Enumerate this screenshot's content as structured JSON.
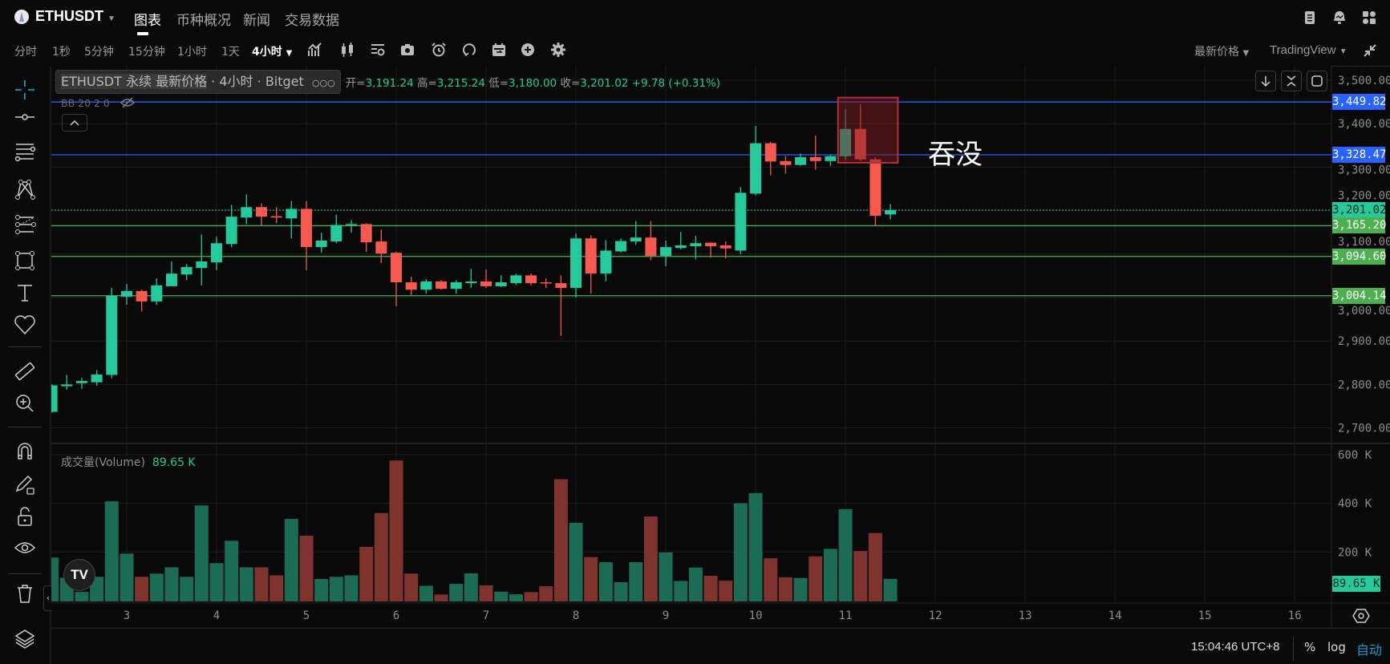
{
  "header": {
    "symbol": "ETHUSDT",
    "tabs": [
      {
        "label": "图表",
        "active": true
      },
      {
        "label": "币种概况"
      },
      {
        "label": "新闻"
      },
      {
        "label": "交易数据"
      }
    ]
  },
  "toolbar": {
    "intervals": [
      "分时",
      "1秒",
      "5分钟",
      "15分钟",
      "1小时",
      "1天"
    ],
    "active_interval": "4小时",
    "icons": [
      "indicators-icon",
      "candle-type-icon",
      "templates-icon",
      "snapshot-icon",
      "alert-icon",
      "replay-icon",
      "calendar-icon",
      "add-icon",
      "settings-icon"
    ],
    "price_type": "最新价格",
    "chart_engine": "TradingView"
  },
  "legend": {
    "tooltip": {
      "symbol": "ETHUSDT",
      "contract": "永续",
      "price_type": "最新价格",
      "interval": "4小时",
      "exchange": "Bitget",
      "more": "○○○"
    },
    "open_label": "开=",
    "open": "3,191.24",
    "high_label": "高=",
    "high": "3,215.24",
    "low_label": "低=",
    "low": "3,180.00",
    "close_label": "收=",
    "close": "3,201.02",
    "change": "+9.78 (+0.31%)",
    "indicator": "BB 20 2 0"
  },
  "annotation": {
    "text": "吞没",
    "box_color": "#b2303a"
  },
  "volume_legend": {
    "label": "成交量(Volume)",
    "value": "89.65 K"
  },
  "status_bar": {
    "time": "15:04:46 UTC+8",
    "percent": "%",
    "log": "log",
    "auto": "自动"
  },
  "colors": {
    "up": "#26c99c",
    "down": "#f5594f",
    "vol_up": "#1b6b55",
    "vol_down": "#7f332e",
    "blue_line": "#2962ff",
    "green_line": "#4caf50",
    "bg": "#0a0a0a"
  },
  "chart_data": {
    "type": "candlestick",
    "interval": "4小时",
    "x_tick_labels": [
      "3",
      "4",
      "5",
      "6",
      "7",
      "8",
      "9",
      "10",
      "11",
      "12",
      "13",
      "14",
      "15",
      "16"
    ],
    "price_ticks": [
      "3,500.00",
      "3,400.00",
      "3,300.00",
      "3,200.00",
      "3,100.00",
      "3,000.00",
      "2,900.00",
      "2,800.00",
      "2,700.00"
    ],
    "price_tick_values": [
      3500,
      3400,
      3300,
      3200,
      3100,
      3000,
      2900,
      2800,
      2700
    ],
    "ylim": [
      2700,
      3500
    ],
    "volume_ticks": [
      "600 K",
      "400 K",
      "200 K"
    ],
    "volume_tick_values": [
      600,
      400,
      200
    ],
    "volume_unit": "K",
    "grid": true,
    "ohlc": [
      [
        2737,
        2800,
        2735,
        2798
      ],
      [
        2796,
        2822,
        2788,
        2800
      ],
      [
        2803,
        2815,
        2790,
        2808
      ],
      [
        2805,
        2833,
        2797,
        2823
      ],
      [
        2822,
        3022,
        2814,
        3004
      ],
      [
        3002,
        3031,
        2983,
        3015
      ],
      [
        3015,
        3018,
        2968,
        2991
      ],
      [
        2991,
        3044,
        2983,
        3028
      ],
      [
        3026,
        3083,
        3026,
        3055
      ],
      [
        3053,
        3077,
        3040,
        3070
      ],
      [
        3068,
        3145,
        3028,
        3083
      ],
      [
        3081,
        3140,
        3063,
        3125
      ],
      [
        3123,
        3213,
        3116,
        3186
      ],
      [
        3184,
        3237,
        3169,
        3208
      ],
      [
        3208,
        3217,
        3165,
        3186
      ],
      [
        3187,
        3208,
        3171,
        3184
      ],
      [
        3182,
        3222,
        3136,
        3204
      ],
      [
        3204,
        3222,
        3063,
        3116
      ],
      [
        3116,
        3149,
        3103,
        3131
      ],
      [
        3129,
        3191,
        3125,
        3167
      ],
      [
        3167,
        3178,
        3149,
        3169
      ],
      [
        3169,
        3171,
        3105,
        3127
      ],
      [
        3129,
        3156,
        3079,
        3101
      ],
      [
        3103,
        3105,
        2980,
        3035
      ],
      [
        3035,
        3048,
        3004,
        3018
      ],
      [
        3018,
        3042,
        3009,
        3037
      ],
      [
        3037,
        3040,
        3018,
        3020
      ],
      [
        3020,
        3040,
        3009,
        3035
      ],
      [
        3033,
        3066,
        3022,
        3037
      ],
      [
        3037,
        3064,
        3022,
        3026
      ],
      [
        3026,
        3051,
        3024,
        3035
      ],
      [
        3033,
        3055,
        3029,
        3051
      ],
      [
        3051,
        3055,
        3028,
        3033
      ],
      [
        3035,
        3044,
        3022,
        3033
      ],
      [
        3033,
        3051,
        2912,
        3022
      ],
      [
        3022,
        3147,
        3000,
        3136
      ],
      [
        3136,
        3143,
        3009,
        3055
      ],
      [
        3055,
        3132,
        3037,
        3108
      ],
      [
        3106,
        3136,
        3104,
        3130
      ],
      [
        3129,
        3176,
        3121,
        3138
      ],
      [
        3138,
        3176,
        3086,
        3096
      ],
      [
        3096,
        3131,
        3072,
        3116
      ],
      [
        3114,
        3151,
        3111,
        3120
      ],
      [
        3118,
        3142,
        3088,
        3125
      ],
      [
        3126,
        3127,
        3092,
        3118
      ],
      [
        3120,
        3129,
        3090,
        3113
      ],
      [
        3108,
        3254,
        3100,
        3241
      ],
      [
        3239,
        3395,
        3235,
        3355
      ],
      [
        3355,
        3358,
        3281,
        3313
      ],
      [
        3314,
        3325,
        3285,
        3305
      ],
      [
        3305,
        3331,
        3303,
        3323
      ],
      [
        3323,
        3373,
        3294,
        3314
      ],
      [
        3314,
        3328,
        3303,
        3325
      ],
      [
        3325,
        3434,
        3316,
        3388
      ],
      [
        3388,
        3445,
        3314,
        3318
      ],
      [
        3318,
        3323,
        3164,
        3188
      ],
      [
        3191.24,
        3215.24,
        3180.0,
        3201.02
      ]
    ],
    "volume": [
      177,
      94,
      36,
      98,
      408,
      193,
      98,
      111,
      137,
      98,
      391,
      154,
      246,
      137,
      137,
      104,
      336,
      267,
      89,
      98,
      104,
      221,
      360,
      576,
      111,
      61,
      25,
      69,
      112,
      63,
      37,
      26,
      35,
      59,
      499,
      320,
      179,
      158,
      76,
      158,
      346,
      198,
      81,
      136,
      102,
      82,
      400,
      442,
      174,
      96,
      93,
      182,
      213,
      376,
      204,
      278,
      89.65
    ],
    "price_lines": [
      {
        "value": 3449.82,
        "label": "3,449.82",
        "kind": "blue"
      },
      {
        "value": 3328.47,
        "label": "3,328.47",
        "kind": "blue"
      },
      {
        "value": 3201.02,
        "label": "3,201.02",
        "kind": "last"
      },
      {
        "value": 3165.2,
        "label": "3,165.20",
        "kind": "green"
      },
      {
        "value": 3094.6,
        "label": "3,094.60",
        "kind": "green"
      },
      {
        "value": 3004.14,
        "label": "3,004.14",
        "kind": "green"
      }
    ],
    "highlight_box": {
      "price_top": 3460,
      "price_bottom": 3310,
      "from_index": 51.5,
      "to_index": 55.5
    }
  }
}
